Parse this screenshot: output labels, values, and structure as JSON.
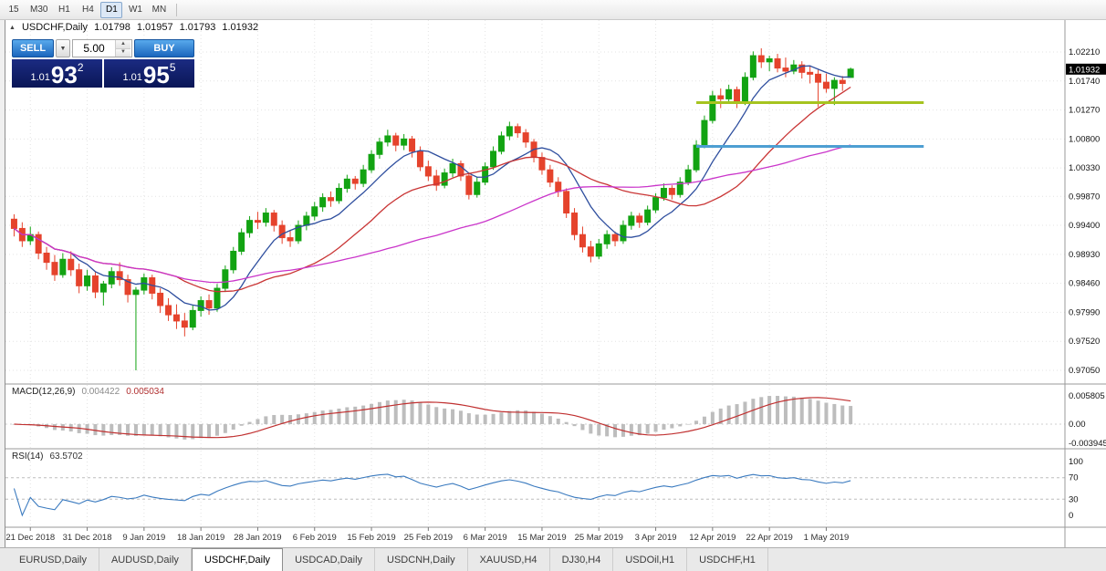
{
  "toolbar": {
    "timeframes": [
      {
        "label": "15",
        "active": false
      },
      {
        "label": "M30",
        "active": false
      },
      {
        "label": "H1",
        "active": false
      },
      {
        "label": "H4",
        "active": false
      },
      {
        "label": "D1",
        "active": true
      },
      {
        "label": "W1",
        "active": false
      },
      {
        "label": "MN",
        "active": false
      }
    ]
  },
  "chart": {
    "header": {
      "collapse_icon": "▲",
      "symbol": "USDCHF,Daily",
      "open": "1.01798",
      "high": "1.01957",
      "low": "1.01793",
      "close": "1.01932"
    }
  },
  "trade_panel": {
    "sell_label": "SELL",
    "buy_label": "BUY",
    "volume": "5.00",
    "dropdown_icon": "▼",
    "spin_up_icon": "▲",
    "spin_down_icon": "▼",
    "sell_price": {
      "prefix": "1.01",
      "big": "93",
      "sup": "2"
    },
    "buy_price": {
      "prefix": "1.01",
      "big": "95",
      "sup": "5"
    }
  },
  "chart_data": {
    "type": "candlestick",
    "symbol": "USDCHF",
    "timeframe": "Daily",
    "last_ohlc": {
      "open": 1.01798,
      "high": 1.01957,
      "low": 1.01793,
      "close": 1.01932
    },
    "price_axis": {
      "labels": [
        "1.02210",
        "1.01740",
        "1.01270",
        "1.00800",
        "1.00330",
        "0.99870",
        "0.99400",
        "0.98930",
        "0.98460",
        "0.97990",
        "0.97520",
        "0.97050"
      ],
      "max": 1.0221,
      "min": 0.9705,
      "current": 1.01932
    },
    "candle_colors": {
      "up": "#12a312",
      "down": "#e5432c"
    },
    "candles": [
      [
        0.995,
        0.9958,
        0.9922,
        0.9935
      ],
      [
        0.9935,
        0.9945,
        0.9905,
        0.9915
      ],
      [
        0.9915,
        0.9938,
        0.9908,
        0.9925
      ],
      [
        0.9925,
        0.993,
        0.9885,
        0.9895
      ],
      [
        0.9895,
        0.9905,
        0.9868,
        0.988
      ],
      [
        0.988,
        0.9892,
        0.985,
        0.986
      ],
      [
        0.986,
        0.9895,
        0.9855,
        0.9885
      ],
      [
        0.9885,
        0.9898,
        0.9858,
        0.9868
      ],
      [
        0.9868,
        0.9878,
        0.983,
        0.9842
      ],
      [
        0.9842,
        0.9868,
        0.9834,
        0.9858
      ],
      [
        0.9858,
        0.9864,
        0.9822,
        0.9832
      ],
      [
        0.9832,
        0.985,
        0.981,
        0.9845
      ],
      [
        0.9845,
        0.9872,
        0.9838,
        0.9865
      ],
      [
        0.9865,
        0.988,
        0.9842,
        0.9852
      ],
      [
        0.9852,
        0.986,
        0.9815,
        0.9828
      ],
      [
        0.9828,
        0.984,
        0.9705,
        0.9835
      ],
      [
        0.9835,
        0.9862,
        0.9828,
        0.9855
      ],
      [
        0.9855,
        0.986,
        0.982,
        0.983
      ],
      [
        0.983,
        0.9838,
        0.9798,
        0.981
      ],
      [
        0.981,
        0.9822,
        0.9785,
        0.9795
      ],
      [
        0.9795,
        0.9812,
        0.9772,
        0.9785
      ],
      [
        0.9785,
        0.9798,
        0.976,
        0.9775
      ],
      [
        0.9775,
        0.981,
        0.977,
        0.9802
      ],
      [
        0.9802,
        0.9825,
        0.9792,
        0.9818
      ],
      [
        0.9818,
        0.9828,
        0.9795,
        0.9806
      ],
      [
        0.9806,
        0.9845,
        0.98,
        0.9838
      ],
      [
        0.9838,
        0.9875,
        0.9832,
        0.9868
      ],
      [
        0.9868,
        0.9905,
        0.9862,
        0.9898
      ],
      [
        0.9898,
        0.9935,
        0.9892,
        0.9928
      ],
      [
        0.9928,
        0.9955,
        0.992,
        0.9948
      ],
      [
        0.9948,
        0.9962,
        0.9934,
        0.9945
      ],
      [
        0.9945,
        0.9968,
        0.9938,
        0.996
      ],
      [
        0.996,
        0.9965,
        0.993,
        0.994
      ],
      [
        0.994,
        0.9948,
        0.991,
        0.992
      ],
      [
        0.992,
        0.9932,
        0.9905,
        0.9915
      ],
      [
        0.9915,
        0.9948,
        0.991,
        0.994
      ],
      [
        0.994,
        0.9962,
        0.9932,
        0.9955
      ],
      [
        0.9955,
        0.9978,
        0.9948,
        0.997
      ],
      [
        0.997,
        0.9992,
        0.9962,
        0.9985
      ],
      [
        0.9985,
        0.9995,
        0.997,
        0.998
      ],
      [
        0.998,
        1.0008,
        0.9975,
        1.0
      ],
      [
        1.0,
        1.0022,
        0.9993,
        1.0015
      ],
      [
        1.0015,
        1.002,
        0.9998,
        1.0008
      ],
      [
        1.0008,
        1.0038,
        1.0002,
        1.003
      ],
      [
        1.003,
        1.0062,
        1.0025,
        1.0055
      ],
      [
        1.0055,
        1.0082,
        1.0048,
        1.0075
      ],
      [
        1.0075,
        1.0095,
        1.0068,
        1.0085
      ],
      [
        1.0085,
        1.009,
        1.006,
        1.007
      ],
      [
        1.007,
        1.0088,
        1.0062,
        1.008
      ],
      [
        1.008,
        1.0085,
        1.005,
        1.006
      ],
      [
        1.006,
        1.0068,
        1.0028,
        1.0035
      ],
      [
        1.0035,
        1.0045,
        1.0012,
        1.002
      ],
      [
        1.002,
        1.003,
        0.9996,
        1.0005
      ],
      [
        1.0005,
        1.0032,
        1.0,
        1.0025
      ],
      [
        1.0025,
        1.0048,
        1.0018,
        1.004
      ],
      [
        1.004,
        1.0045,
        1.0012,
        1.002
      ],
      [
        1.002,
        1.0026,
        0.9982,
        0.999
      ],
      [
        0.999,
        1.0018,
        0.9985,
        1.001
      ],
      [
        1.001,
        1.0042,
        1.0005,
        1.0035
      ],
      [
        1.0035,
        1.0068,
        1.003,
        1.006
      ],
      [
        1.006,
        1.0092,
        1.0055,
        1.0085
      ],
      [
        1.0085,
        1.0108,
        1.0078,
        1.01
      ],
      [
        1.01,
        1.0105,
        1.0082,
        1.009
      ],
      [
        1.009,
        1.0096,
        1.0066,
        1.0075
      ],
      [
        1.0075,
        1.008,
        1.0042,
        1.005
      ],
      [
        1.005,
        1.0058,
        1.0022,
        1.003
      ],
      [
        1.003,
        1.0038,
        1.0002,
        1.001
      ],
      [
        1.001,
        1.0018,
        0.9986,
        0.9995
      ],
      [
        0.9995,
        1.0,
        0.9952,
        0.996
      ],
      [
        0.996,
        0.9968,
        0.9916,
        0.9925
      ],
      [
        0.9925,
        0.9938,
        0.9896,
        0.9905
      ],
      [
        0.9905,
        0.9915,
        0.988,
        0.989
      ],
      [
        0.989,
        0.9918,
        0.9885,
        0.991
      ],
      [
        0.991,
        0.9932,
        0.9902,
        0.9925
      ],
      [
        0.9925,
        0.993,
        0.9906,
        0.9915
      ],
      [
        0.9915,
        0.9948,
        0.991,
        0.994
      ],
      [
        0.994,
        0.9962,
        0.9933,
        0.9955
      ],
      [
        0.9955,
        0.996,
        0.9936,
        0.9945
      ],
      [
        0.9945,
        0.9972,
        0.994,
        0.9965
      ],
      [
        0.9965,
        0.9992,
        0.996,
        0.9985
      ],
      [
        0.9985,
        1.0008,
        0.998,
        1.0
      ],
      [
        1.0,
        1.0005,
        0.9982,
        0.999
      ],
      [
        0.999,
        1.0018,
        0.9985,
        1.001
      ],
      [
        1.001,
        1.0038,
        1.0005,
        1.003
      ],
      [
        1.003,
        1.0078,
        1.0026,
        1.007
      ],
      [
        1.007,
        1.0118,
        1.0065,
        1.011
      ],
      [
        1.011,
        1.0158,
        1.0105,
        1.015
      ],
      [
        1.015,
        1.0162,
        1.013,
        1.0145
      ],
      [
        1.0145,
        1.0168,
        1.0138,
        1.016
      ],
      [
        1.016,
        1.0165,
        1.013,
        1.014
      ],
      [
        1.014,
        1.0188,
        1.0135,
        1.018
      ],
      [
        1.018,
        1.0222,
        1.0175,
        1.0215
      ],
      [
        1.0215,
        1.0227,
        1.0195,
        1.0205
      ],
      [
        1.0205,
        1.0215,
        1.019,
        1.021
      ],
      [
        1.021,
        1.0218,
        1.0188,
        1.0195
      ],
      [
        1.0195,
        1.0212,
        1.018,
        1.019
      ],
      [
        1.019,
        1.0208,
        1.0185,
        1.02
      ],
      [
        1.02,
        1.0206,
        1.0178,
        1.0188
      ],
      [
        1.0188,
        1.0198,
        1.017,
        1.0185
      ],
      [
        1.0185,
        1.0192,
        1.0132,
        1.0172
      ],
      [
        1.0172,
        1.0186,
        1.0155,
        1.0162
      ],
      [
        1.0162,
        1.018,
        1.0135,
        1.0175
      ],
      [
        1.0175,
        1.0182,
        1.0158,
        1.017
      ],
      [
        1.01798,
        1.01957,
        1.01793,
        1.01932
      ]
    ],
    "date_labels": [
      "21 Dec 2018",
      "31 Dec 2018",
      "9 Jan 2019",
      "18 Jan 2019",
      "28 Jan 2019",
      "6 Feb 2019",
      "15 Feb 2019",
      "25 Feb 2019",
      "6 Mar 2019",
      "15 Mar 2019",
      "25 Mar 2019",
      "3 Apr 2019",
      "12 Apr 2019",
      "22 Apr 2019",
      "1 May 2019"
    ],
    "first_label_index": 2,
    "label_step": 7,
    "moving_averages": [
      {
        "type": "sma",
        "period": 8,
        "color": "#2e4e9e"
      },
      {
        "type": "sma",
        "period": 21,
        "color": "#c93535"
      },
      {
        "type": "sma",
        "period": 45,
        "color": "#ca35ca"
      }
    ],
    "hlines": [
      {
        "price": 1.0139,
        "color": "#a6c41f",
        "from_bar": 84,
        "to_bar": 112,
        "stroke_width": 3
      },
      {
        "price": 1.0068,
        "color": "#4e9fd2",
        "from_bar": 84,
        "to_bar": 112,
        "stroke_width": 3
      }
    ],
    "macd": {
      "label": "MACD(12,26,9)",
      "fast": 12,
      "slow": 26,
      "signal_period": 9,
      "value_main": "0.004422",
      "value_signal": "0.005034",
      "scale_labels": [
        "0.005805",
        "0.00",
        "-0.003945"
      ],
      "bar_color": "#bdbdbd",
      "signal_color": "#c03030"
    },
    "rsi": {
      "label": "RSI(14)",
      "period": 14,
      "value": "63.5702",
      "scale_labels": [
        "100",
        "70",
        "30",
        "0"
      ],
      "levels": [
        70,
        30
      ],
      "line_color": "#3a7abf"
    }
  },
  "tabs": [
    {
      "label": "EURUSD,Daily",
      "active": false
    },
    {
      "label": "AUDUSD,Daily",
      "active": false
    },
    {
      "label": "USDCHF,Daily",
      "active": true
    },
    {
      "label": "USDCAD,Daily",
      "active": false
    },
    {
      "label": "USDCNH,Daily",
      "active": false
    },
    {
      "label": "XAUUSD,H4",
      "active": false
    },
    {
      "label": "DJ30,H4",
      "active": false
    },
    {
      "label": "USDOil,H1",
      "active": false
    },
    {
      "label": "USDCHF,H1",
      "active": false
    }
  ]
}
